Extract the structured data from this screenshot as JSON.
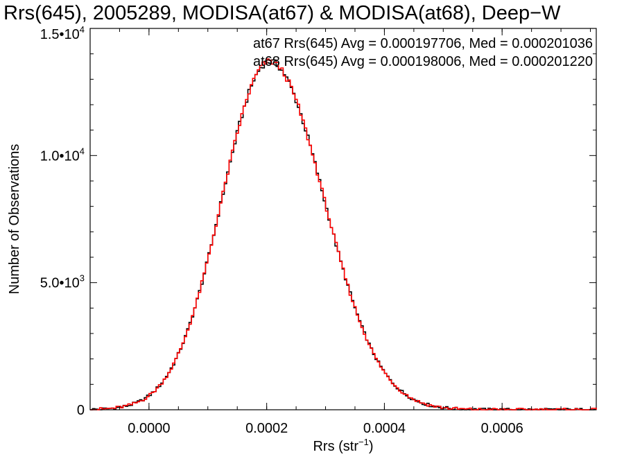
{
  "chart_data": {
    "type": "histogram",
    "title": "Rrs(645), 2005289, MODISA(at67) & MODISA(at68), Deep−W",
    "xlabel": "Rrs (str",
    "xlabel_sup": "−1",
    "xlabel_close": ")",
    "ylabel": "Number of Observations",
    "xlim": [
      -0.0001,
      0.00076
    ],
    "ylim": [
      0,
      15000
    ],
    "x_ticks": [
      {
        "value": 0.0,
        "label": "0.0000"
      },
      {
        "value": 0.0002,
        "label": "0.0002"
      },
      {
        "value": 0.0004,
        "label": "0.0004"
      },
      {
        "value": 0.0006,
        "label": "0.0006"
      }
    ],
    "y_ticks": [
      {
        "value": 0,
        "label": "0",
        "exp": ""
      },
      {
        "value": 5000,
        "label": "5.0•10",
        "exp": "3"
      },
      {
        "value": 10000,
        "label": "1.0•10",
        "exp": "4"
      },
      {
        "value": 15000,
        "label": "1.5•10",
        "exp": "4"
      }
    ],
    "grid": false,
    "legend_placement": "top-right",
    "annotations": [
      {
        "text": "at67 Rrs(645) Avg = 0.000197706, Med = 0.000201036",
        "color": "#000000"
      },
      {
        "text": "at68 Rrs(645) Avg = 0.000198006, Med = 0.000201220",
        "color": "#ff0000"
      }
    ],
    "series_shape": {
      "peak_x": 0.000205,
      "peak_y": 13700,
      "sigma_left": 8.1e-05,
      "sigma_right": 9.25e-05,
      "bin_width": 4e-06
    },
    "series": [
      {
        "name": "at67",
        "color": "#000000"
      },
      {
        "name": "at68",
        "color": "#ff0000"
      }
    ]
  }
}
